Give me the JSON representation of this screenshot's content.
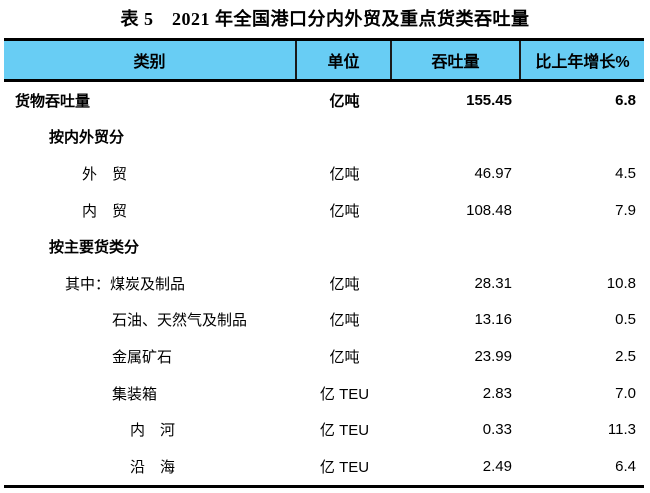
{
  "title": "表 5　2021 年全国港口分内外贸及重点货类吞吐量",
  "colors": {
    "header_bg": "#68CDF4",
    "border": "#000000",
    "text": "#000000"
  },
  "table": {
    "columns": {
      "category": "类别",
      "unit": "单位",
      "throughput": "吞吐量",
      "growth": "比上年增长%"
    },
    "rows": [
      {
        "label": "货物吞吐量",
        "unit": "亿吨",
        "value": "155.45",
        "growth": "6.8"
      },
      {
        "label": "按内外贸分",
        "unit": "",
        "value": "",
        "growth": ""
      },
      {
        "label": "外　贸",
        "unit": "亿吨",
        "value": "46.97",
        "growth": "4.5"
      },
      {
        "label": "内　贸",
        "unit": "亿吨",
        "value": "108.48",
        "growth": "7.9"
      },
      {
        "label": "按主要货类分",
        "unit": "",
        "value": "",
        "growth": ""
      },
      {
        "label": "其中：煤炭及制品",
        "unit": "亿吨",
        "value": "28.31",
        "growth": "10.8"
      },
      {
        "label": "石油、天然气及制品",
        "unit": "亿吨",
        "value": "13.16",
        "growth": "0.5"
      },
      {
        "label": "金属矿石",
        "unit": "亿吨",
        "value": "23.99",
        "growth": "2.5"
      },
      {
        "label": "集装箱",
        "unit": "亿 TEU",
        "value": "2.83",
        "growth": "7.0"
      },
      {
        "label": "内　河",
        "unit": "亿 TEU",
        "value": "0.33",
        "growth": "11.3"
      },
      {
        "label": "沿　海",
        "unit": "亿 TEU",
        "value": "2.49",
        "growth": "6.4"
      }
    ]
  }
}
